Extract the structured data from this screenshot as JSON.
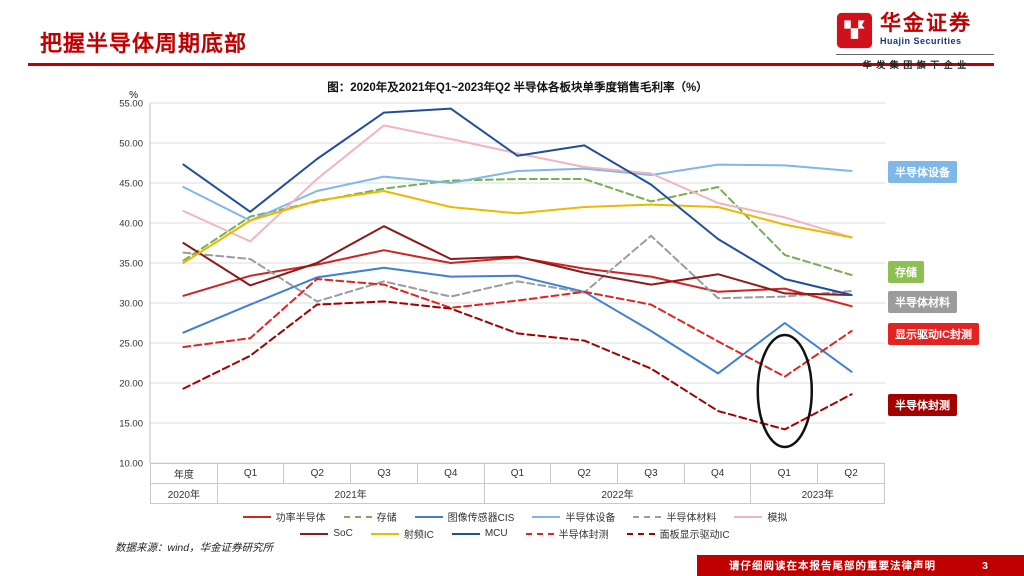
{
  "page": {
    "title": "把握半导体周期底部",
    "source_note": "数据来源：wind，华金证券研究所",
    "footer_notice": "请仔细阅读在本报告尾部的重要法律声明",
    "page_number": "3"
  },
  "logo": {
    "cn": "华金证券",
    "en": "Huajin Securities",
    "tagline": "华 发 集 团 旗 下 企 业",
    "brand_color": "#C00000"
  },
  "chart_data": {
    "type": "line",
    "title": "图：2020年及2021年Q1~2023年Q2 半导体各板块单季度销售毛利率（%）",
    "ylabel": "%",
    "ylim": [
      10,
      55
    ],
    "ytick_step": 5,
    "grid": true,
    "legend_position": "bottom",
    "categories": [
      "年度",
      "Q1",
      "Q2",
      "Q3",
      "Q4",
      "Q1",
      "Q2",
      "Q3",
      "Q4",
      "Q1",
      "Q2"
    ],
    "year_groups": [
      {
        "label": "2020年",
        "span": 1
      },
      {
        "label": "2021年",
        "span": 4
      },
      {
        "label": "2022年",
        "span": 4
      },
      {
        "label": "2023年",
        "span": 2
      }
    ],
    "series": [
      {
        "name": "功率半导体",
        "color": "#D22222",
        "dash": false,
        "values": [
          30.9,
          33.4,
          34.8,
          36.6,
          35.0,
          35.7,
          34.3,
          33.3,
          31.4,
          31.8,
          29.6
        ]
      },
      {
        "name": "存储",
        "color": "#77B052",
        "dash": true,
        "values": [
          35.3,
          40.8,
          42.7,
          44.3,
          45.3,
          45.5,
          45.5,
          42.7,
          44.5,
          36.0,
          33.5
        ]
      },
      {
        "name": "图像传感器CIS",
        "color": "#3F7FD6",
        "dash": false,
        "values": [
          26.3,
          29.8,
          33.2,
          34.4,
          33.3,
          33.4,
          31.4,
          26.5,
          21.2,
          27.5,
          21.4
        ]
      },
      {
        "name": "半导体设备",
        "color": "#7EB7E8",
        "dash": false,
        "values": [
          44.5,
          40.3,
          44.0,
          45.8,
          45.0,
          46.5,
          46.8,
          46.0,
          47.3,
          47.2,
          46.5
        ]
      },
      {
        "name": "半导体材料",
        "color": "#9C9C9C",
        "dash": true,
        "values": [
          36.3,
          35.5,
          30.2,
          32.7,
          30.8,
          32.7,
          31.3,
          38.4,
          30.6,
          30.8,
          31.5
        ]
      },
      {
        "name": "模拟",
        "color": "#F2B5BD",
        "dash": false,
        "values": [
          41.5,
          37.7,
          45.5,
          52.2,
          50.5,
          48.7,
          47.0,
          46.2,
          42.5,
          40.7,
          38.2
        ]
      },
      {
        "name": "SoC",
        "color": "#8B1A1A",
        "dash": false,
        "values": [
          37.5,
          32.2,
          35.0,
          39.6,
          35.5,
          35.8,
          33.8,
          32.3,
          33.6,
          31.2,
          31.0
        ]
      },
      {
        "name": "射频IC",
        "color": "#EDB800",
        "dash": false,
        "values": [
          35.0,
          40.3,
          42.8,
          44.0,
          42.0,
          41.2,
          42.0,
          42.3,
          42.0,
          39.8,
          38.2
        ]
      },
      {
        "name": "MCU",
        "color": "#1F4E9C",
        "dash": false,
        "values": [
          47.3,
          41.4,
          48.0,
          53.8,
          54.3,
          48.4,
          49.7,
          44.8,
          38.0,
          33.0,
          31.0
        ]
      },
      {
        "name": "半导体封测",
        "color": "#E32222",
        "dash": true,
        "values": [
          24.5,
          25.6,
          33.0,
          32.3,
          29.4,
          30.3,
          31.4,
          29.8,
          25.2,
          20.8,
          26.5
        ]
      },
      {
        "name": "面板显示驱动IC",
        "color": "#A50000",
        "dash": true,
        "values": [
          19.3,
          23.4,
          29.8,
          30.2,
          29.3,
          26.2,
          25.3,
          21.8,
          16.5,
          14.2,
          18.6
        ]
      }
    ],
    "legend_rows": [
      6,
      5
    ],
    "side_labels": [
      {
        "text": "半导体设备",
        "bg": "#7EB7E8",
        "anchor_value": 46.5
      },
      {
        "text": "存储",
        "bg": "#8CC050",
        "anchor_value": 34.0
      },
      {
        "text": "半导体材料",
        "bg": "#9C9C9C",
        "anchor_value": 30.2
      },
      {
        "text": "显示驱动IC封测",
        "bg": "#E32222",
        "anchor_value": 26.2
      },
      {
        "text": "半导体封测",
        "bg": "#A50000",
        "anchor_value": 17.4
      }
    ],
    "annotation_ellipse": {
      "category_index": 9,
      "center_value": 19.0,
      "note": "hand-drawn circle highlighting the 2023Q1 trough of the packaging/testing dashed lines"
    }
  }
}
